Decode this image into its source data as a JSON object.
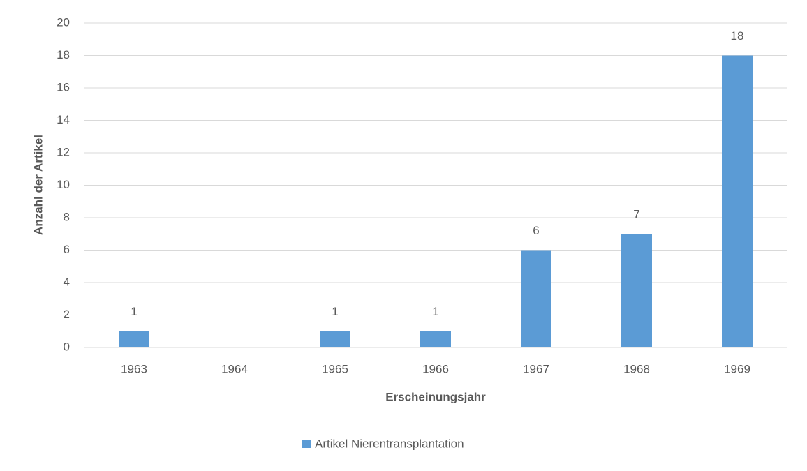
{
  "chart_data": {
    "type": "bar",
    "x_label": "Erscheinungsjahr",
    "y_label": "Anzahl der Artikel",
    "categories": [
      "1963",
      "1964",
      "1965",
      "1966",
      "1967",
      "1968",
      "1969"
    ],
    "series": [
      {
        "name": "Artikel Nierentransplantation",
        "color": "#5b9bd5",
        "values": [
          1,
          null,
          1,
          1,
          6,
          7,
          18
        ]
      }
    ],
    "ylim": [
      0,
      20
    ],
    "yticks": [
      0,
      2,
      4,
      6,
      8,
      10,
      12,
      14,
      16,
      18,
      20
    ],
    "grid": true,
    "legend": "bottom",
    "data_labels": true
  }
}
